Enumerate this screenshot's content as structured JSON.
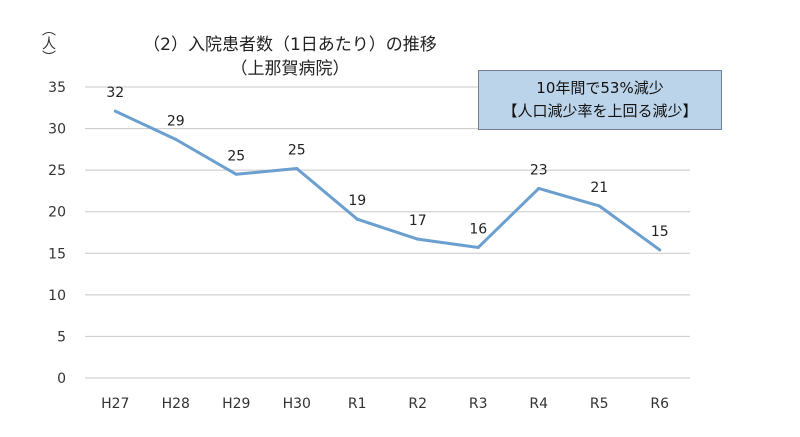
{
  "chart_data": {
    "type": "line",
    "title": "（2）入院患者数（1日あたり）の推移",
    "subtitle": "（上那賀病院）",
    "ylabel": "（人）",
    "xlabel": "",
    "categories": [
      "H27",
      "H28",
      "H29",
      "H30",
      "R1",
      "R2",
      "R3",
      "R4",
      "R5",
      "R6"
    ],
    "values": [
      32.1,
      28.7,
      24.5,
      25.2,
      19.1,
      16.7,
      15.7,
      22.8,
      20.7,
      15.4
    ],
    "data_labels": [
      "32",
      "29",
      "25",
      "25",
      "19",
      "17",
      "16",
      "23",
      "21",
      "15"
    ],
    "ylim": [
      0,
      35
    ],
    "yticks": [
      "0",
      "5",
      "10",
      "15",
      "20",
      "25",
      "30",
      "35"
    ],
    "grid": true,
    "line_color": "#6a9fd0",
    "annotation": {
      "line1": "10年間で53%減少",
      "line2": "【人口減少率を上回る減少】",
      "background": "#bcd4ea"
    }
  }
}
